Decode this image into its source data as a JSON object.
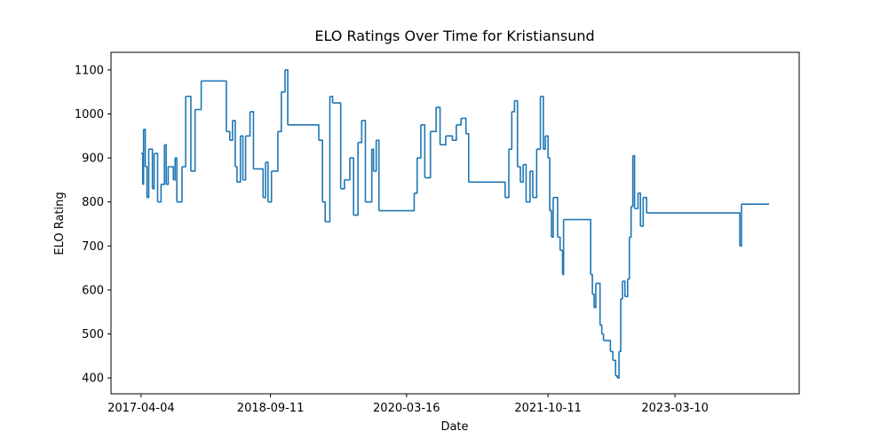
{
  "chart_data": {
    "type": "line",
    "drawstyle": "steps-post",
    "title": "ELO Ratings Over Time for Kristiansund",
    "x_label": "Date",
    "y_label": "ELO Rating",
    "series": [
      {
        "name": "Kristiansund",
        "color": "#1f77b4",
        "x": [
          "2017-04-04",
          "2017-04-11",
          "2017-04-14",
          "2017-04-21",
          "2017-04-28",
          "2017-05-05",
          "2017-05-20",
          "2017-05-27",
          "2017-06-10",
          "2017-06-24",
          "2017-07-08",
          "2017-07-15",
          "2017-07-23",
          "2017-08-13",
          "2017-08-20",
          "2017-08-27",
          "2017-09-17",
          "2017-10-02",
          "2017-10-23",
          "2017-11-09",
          "2017-12-04",
          "2018-03-16",
          "2018-03-30",
          "2018-04-10",
          "2018-04-21",
          "2018-04-28",
          "2018-05-12",
          "2018-05-22",
          "2018-06-02",
          "2018-06-20",
          "2018-07-04",
          "2018-08-12",
          "2018-08-22",
          "2018-09-01",
          "2018-09-15",
          "2018-10-11",
          "2018-10-25",
          "2018-11-09",
          "2018-11-20",
          "2019-03-26",
          "2019-04-10",
          "2019-04-21",
          "2019-05-10",
          "2019-05-21",
          "2019-06-23",
          "2019-07-08",
          "2019-07-30",
          "2019-08-14",
          "2019-09-01",
          "2019-09-16",
          "2019-10-01",
          "2019-10-27",
          "2019-11-03",
          "2019-11-14",
          "2019-11-25",
          "2020-04-16",
          "2020-04-28",
          "2020-05-13",
          "2020-05-29",
          "2020-06-21",
          "2020-07-14",
          "2020-07-30",
          "2020-08-22",
          "2020-09-18",
          "2020-10-04",
          "2020-10-23",
          "2020-11-12",
          "2020-11-23",
          "2021-04-20",
          "2021-05-05",
          "2021-05-17",
          "2021-05-28",
          "2021-06-09",
          "2021-06-21",
          "2021-07-02",
          "2021-07-14",
          "2021-07-30",
          "2021-08-10",
          "2021-08-26",
          "2021-09-10",
          "2021-09-22",
          "2021-09-30",
          "2021-10-11",
          "2021-10-18",
          "2021-10-25",
          "2021-11-01",
          "2021-11-19",
          "2021-11-29",
          "2021-12-09",
          "2021-12-13",
          "2022-04-02",
          "2022-04-09",
          "2022-04-16",
          "2022-04-23",
          "2022-05-10",
          "2022-05-17",
          "2022-05-24",
          "2022-06-21",
          "2022-07-01",
          "2022-07-12",
          "2022-07-19",
          "2022-07-26",
          "2022-08-02",
          "2022-08-09",
          "2022-08-19",
          "2022-08-30",
          "2022-09-06",
          "2022-09-13",
          "2022-09-20",
          "2022-09-27",
          "2022-10-11",
          "2022-10-21",
          "2022-11-01",
          "2022-11-15",
          "2023-11-28",
          "2023-12-05",
          "2024-03-26"
        ],
        "values": [
          910,
          840,
          965,
          880,
          810,
          920,
          830,
          910,
          800,
          840,
          930,
          840,
          880,
          850,
          900,
          800,
          880,
          1040,
          870,
          1010,
          1075,
          960,
          940,
          985,
          880,
          845,
          950,
          850,
          950,
          1005,
          875,
          810,
          890,
          800,
          870,
          960,
          1050,
          1100,
          975,
          940,
          800,
          755,
          1040,
          1025,
          830,
          850,
          900,
          770,
          935,
          985,
          800,
          920,
          870,
          940,
          780,
          820,
          900,
          975,
          855,
          960,
          1015,
          930,
          950,
          940,
          975,
          990,
          955,
          845,
          810,
          920,
          1005,
          1030,
          880,
          845,
          885,
          800,
          870,
          810,
          920,
          1040,
          920,
          950,
          900,
          780,
          720,
          810,
          720,
          690,
          635,
          760,
          635,
          590,
          560,
          615,
          520,
          500,
          485,
          460,
          440,
          405,
          400,
          460,
          580,
          620,
          585,
          625,
          720,
          790,
          905,
          785,
          820,
          745,
          810,
          775,
          700,
          795,
          795
        ]
      }
    ],
    "xlim": [
      "2016-12-03",
      "2024-07-26"
    ],
    "xticks": [
      "2017-04-04",
      "2018-09-11",
      "2020-03-16",
      "2021-10-11",
      "2023-03-10"
    ],
    "ylim": [
      364,
      1140
    ],
    "yticks": [
      400,
      500,
      600,
      700,
      800,
      900,
      1000,
      1100
    ]
  }
}
